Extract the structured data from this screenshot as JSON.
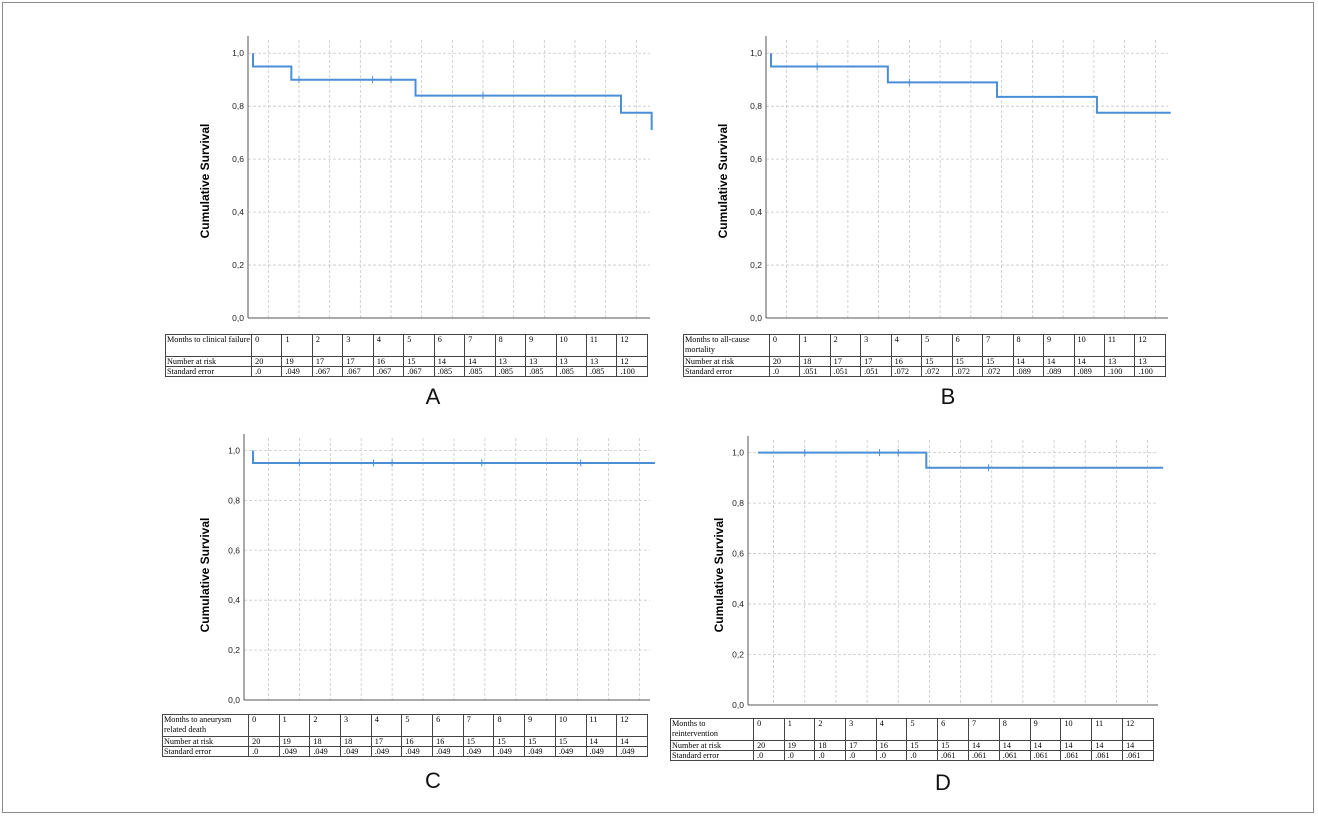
{
  "chart_data": [
    {
      "type": "line",
      "panel_label": "A",
      "ylabel": "Cumulative Survival",
      "yticks": [
        "1,0",
        "0,8",
        "0,6",
        "0,4",
        "0,2",
        "0,0"
      ],
      "ylim": [
        0,
        1.05
      ],
      "xlim": [
        0,
        13
      ],
      "grid": true,
      "series": [
        {
          "x": [
            0,
            0,
            1.25,
            1.25,
            5.3,
            5.3,
            12.0,
            12.0,
            13.0,
            13.0
          ],
          "y": [
            1.0,
            0.95,
            0.95,
            0.9,
            0.9,
            0.84,
            0.84,
            0.775,
            0.775,
            0.71
          ],
          "censored": [
            [
              1.5,
              0.9
            ],
            [
              3.9,
              0.9
            ],
            [
              4.5,
              0.9
            ],
            [
              7.5,
              0.84
            ]
          ]
        }
      ],
      "color": "#4a8fd6",
      "table": {
        "row_labels": [
          "Months to clinical failure",
          "Number at risk",
          "Standard error"
        ],
        "months": [
          "0",
          "1",
          "2",
          "3",
          "4",
          "5",
          "6",
          "7",
          "8",
          "9",
          "10",
          "11",
          "12"
        ],
        "at_risk": [
          "20",
          "19",
          "17",
          "17",
          "16",
          "15",
          "14",
          "14",
          "13",
          "13",
          "13",
          "13",
          "12"
        ],
        "std_error": [
          ".0",
          ".049",
          ".067",
          ".067",
          ".067",
          ".067",
          ".085",
          ".085",
          ".085",
          ".085",
          ".085",
          ".085",
          ".100"
        ]
      }
    },
    {
      "type": "line",
      "panel_label": "B",
      "ylabel": "Cumulative Survival",
      "yticks": [
        "1,0",
        "0,8",
        "0,6",
        "0,4",
        "0,2",
        "0,0"
      ],
      "ylim": [
        0,
        1.05
      ],
      "xlim": [
        0,
        13
      ],
      "grid": true,
      "series": [
        {
          "x": [
            0,
            0,
            3.8,
            3.8,
            7.35,
            7.35,
            10.6,
            10.6,
            13.0
          ],
          "y": [
            1.0,
            0.95,
            0.95,
            0.89,
            0.89,
            0.835,
            0.835,
            0.775,
            0.775
          ],
          "censored": [
            [
              1.5,
              0.95
            ],
            [
              4.5,
              0.89
            ]
          ]
        }
      ],
      "color": "#4a8fd6",
      "table": {
        "row_labels": [
          "Months to all-cause mortality",
          "Number at risk",
          "Standard error"
        ],
        "months": [
          "0",
          "1",
          "2",
          "3",
          "4",
          "5",
          "6",
          "7",
          "8",
          "9",
          "10",
          "11",
          "12"
        ],
        "at_risk": [
          "20",
          "18",
          "17",
          "17",
          "16",
          "15",
          "15",
          "15",
          "14",
          "14",
          "14",
          "13",
          "13"
        ],
        "std_error": [
          ".0",
          ".051",
          ".051",
          ".051",
          ".072",
          ".072",
          ".072",
          ".072",
          ".089",
          ".089",
          ".089",
          ".100",
          ".100"
        ]
      }
    },
    {
      "type": "line",
      "panel_label": "C",
      "ylabel": "Cumulative Survival",
      "yticks": [
        "1,0",
        "0,8",
        "0,6",
        "0,4",
        "0,2",
        "0,0"
      ],
      "ylim": [
        0,
        1.05
      ],
      "xlim": [
        0,
        13
      ],
      "grid": true,
      "series": [
        {
          "x": [
            0,
            0,
            13.0
          ],
          "y": [
            1.0,
            0.95,
            0.95
          ],
          "censored": [
            [
              1.5,
              0.95
            ],
            [
              3.9,
              0.95
            ],
            [
              4.5,
              0.95
            ],
            [
              7.4,
              0.95
            ],
            [
              10.6,
              0.95
            ]
          ]
        }
      ],
      "color": "#4a8fd6",
      "table": {
        "row_labels": [
          "Months to aneurysm related death",
          "Number at risk",
          "Standard error"
        ],
        "months": [
          "0",
          "1",
          "2",
          "3",
          "4",
          "5",
          "6",
          "7",
          "8",
          "9",
          "10",
          "11",
          "12"
        ],
        "at_risk": [
          "20",
          "19",
          "18",
          "18",
          "17",
          "16",
          "16",
          "15",
          "15",
          "15",
          "15",
          "14",
          "14"
        ],
        "std_error": [
          ".0",
          ".049",
          ".049",
          ".049",
          ".049",
          ".049",
          ".049",
          ".049",
          ".049",
          ".049",
          ".049",
          ".049",
          ".049"
        ]
      }
    },
    {
      "type": "line",
      "panel_label": "D",
      "ylabel": "Cumulative Survival",
      "yticks": [
        "1,0",
        "0,8",
        "0,6",
        "0,4",
        "0,2",
        "0,0"
      ],
      "ylim": [
        0,
        1.05
      ],
      "xlim": [
        0,
        13
      ],
      "grid": true,
      "series": [
        {
          "x": [
            0,
            5.4,
            5.4,
            13.0
          ],
          "y": [
            1.0,
            1.0,
            0.94,
            0.94
          ],
          "censored": [
            [
              1.5,
              1.0
            ],
            [
              3.9,
              1.0
            ],
            [
              4.5,
              1.0
            ],
            [
              7.4,
              0.94
            ]
          ]
        }
      ],
      "color": "#4a8fd6",
      "table": {
        "row_labels": [
          "Months to reintervention",
          "Number at risk",
          "Standard error"
        ],
        "months": [
          "0",
          "1",
          "2",
          "3",
          "4",
          "5",
          "6",
          "7",
          "8",
          "9",
          "10",
          "11",
          "12"
        ],
        "at_risk": [
          "20",
          "19",
          "18",
          "17",
          "16",
          "15",
          "15",
          "14",
          "14",
          "14",
          "14",
          "14",
          "14"
        ],
        "std_error": [
          ".0",
          ".0",
          ".0",
          ".0",
          ".0",
          ".0",
          ".061",
          ".061",
          ".061",
          ".061",
          ".061",
          ".061",
          ".061"
        ]
      }
    }
  ]
}
